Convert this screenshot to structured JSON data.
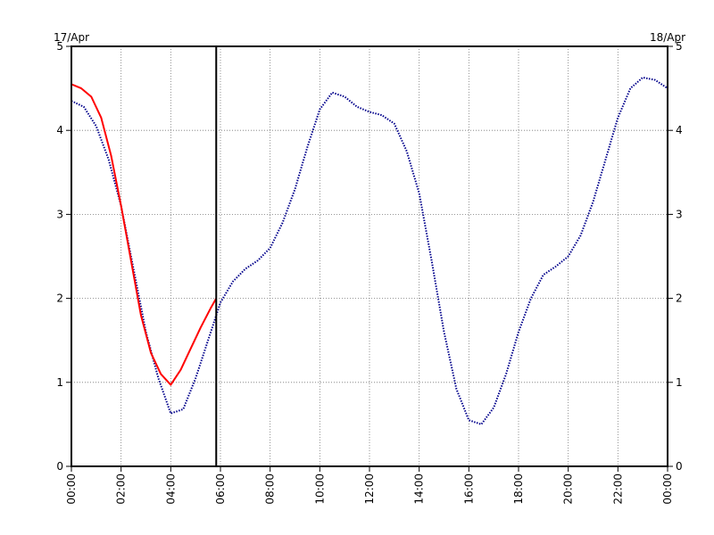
{
  "chart_data": {
    "type": "line",
    "title": "",
    "xlabel": "",
    "ylabel": "",
    "x_unit": "hours",
    "xlim": [
      0,
      24
    ],
    "ylim": [
      0,
      5
    ],
    "date_labels": {
      "left": "17/Apr",
      "right": "18/Apr"
    },
    "x_ticks": [
      {
        "x": 0,
        "label": "00:00"
      },
      {
        "x": 2,
        "label": "02:00"
      },
      {
        "x": 4,
        "label": "04:00"
      },
      {
        "x": 6,
        "label": "06:00"
      },
      {
        "x": 8,
        "label": "08:00"
      },
      {
        "x": 10,
        "label": "10:00"
      },
      {
        "x": 12,
        "label": "12:00"
      },
      {
        "x": 14,
        "label": "14:00"
      },
      {
        "x": 16,
        "label": "16:00"
      },
      {
        "x": 18,
        "label": "18:00"
      },
      {
        "x": 20,
        "label": "20:00"
      },
      {
        "x": 22,
        "label": "22:00"
      },
      {
        "x": 24,
        "label": "00:00"
      }
    ],
    "y_ticks": [
      {
        "y": 0,
        "label": "0"
      },
      {
        "y": 1,
        "label": "1"
      },
      {
        "y": 2,
        "label": "2"
      },
      {
        "y": 3,
        "label": "3"
      },
      {
        "y": 4,
        "label": "4"
      },
      {
        "y": 5,
        "label": "5"
      }
    ],
    "grid": true,
    "current_time_marker": 5.83,
    "series": [
      {
        "color": "#00008b",
        "style": "dotted",
        "x": [
          0,
          0.5,
          1,
          1.5,
          2,
          2.5,
          3,
          3.5,
          4,
          4.5,
          5,
          5.5,
          6,
          6.5,
          7,
          7.5,
          8,
          8.5,
          9,
          9.5,
          10,
          10.5,
          11,
          11.5,
          12,
          12.5,
          13,
          13.5,
          14,
          14.5,
          15,
          15.5,
          16,
          16.5,
          17,
          17.5,
          18,
          18.5,
          19,
          19.5,
          20,
          20.5,
          21,
          21.5,
          22,
          22.5,
          23,
          23.5,
          24
        ],
        "y": [
          4.35,
          4.28,
          4.05,
          3.65,
          3.1,
          2.35,
          1.6,
          1.05,
          0.63,
          0.68,
          1.05,
          1.5,
          1.95,
          2.2,
          2.35,
          2.45,
          2.6,
          2.9,
          3.3,
          3.8,
          4.25,
          4.45,
          4.4,
          4.28,
          4.22,
          4.18,
          4.08,
          3.75,
          3.25,
          2.45,
          1.6,
          0.92,
          0.55,
          0.5,
          0.7,
          1.1,
          1.6,
          2.0,
          2.28,
          2.38,
          2.5,
          2.75,
          3.15,
          3.65,
          4.15,
          4.5,
          4.63,
          4.6,
          4.5
        ]
      },
      {
        "color": "#ff0000",
        "style": "solid",
        "x": [
          0,
          0.4,
          0.8,
          1.2,
          1.6,
          2,
          2.4,
          2.8,
          3.2,
          3.6,
          4,
          4.4,
          4.8,
          5.2,
          5.6,
          5.83
        ],
        "y": [
          4.55,
          4.5,
          4.4,
          4.15,
          3.7,
          3.1,
          2.45,
          1.8,
          1.35,
          1.1,
          0.97,
          1.15,
          1.4,
          1.65,
          1.88,
          2.0
        ]
      }
    ]
  }
}
